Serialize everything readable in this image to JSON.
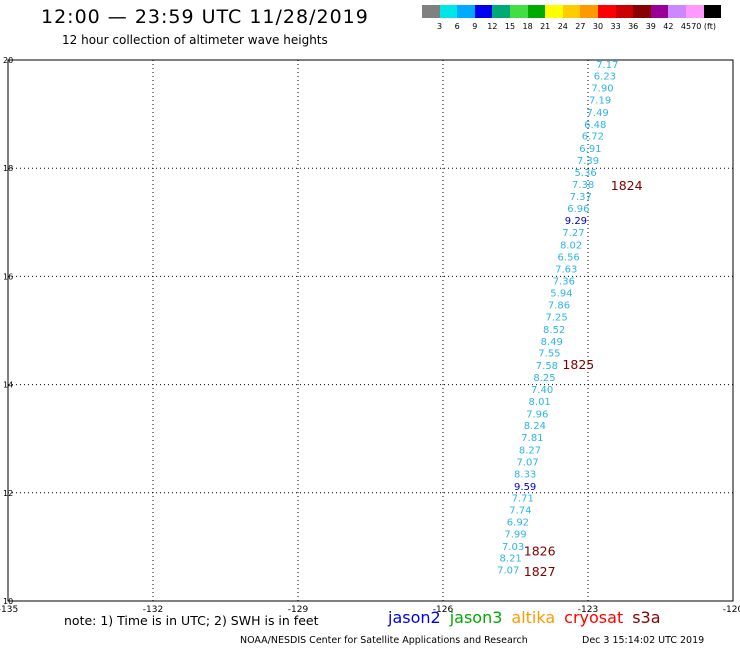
{
  "header": {
    "title": "12:00 — 23:59 UTC 11/28/2019",
    "subtitle": "12 hour collection of altimeter wave heights"
  },
  "color_scale": {
    "colors": [
      "#808080",
      "#00e6e6",
      "#00aaff",
      "#0000ee",
      "#00aa77",
      "#44dd44",
      "#00aa00",
      "#ffff00",
      "#ffcc00",
      "#ff9900",
      "#ff0000",
      "#cc0000",
      "#880000",
      "#990099",
      "#cc88ff",
      "#ff99ff",
      "#000000"
    ],
    "labels": [
      "3",
      "6",
      "9",
      "12",
      "15",
      "18",
      "21",
      "24",
      "27",
      "30",
      "33",
      "36",
      "39",
      "42",
      "45",
      "70 (ft)"
    ]
  },
  "chart_data": {
    "type": "scatter",
    "title": "12:00 — 23:59 UTC 11/28/2019",
    "xlim": [
      -135,
      -120
    ],
    "ylim": [
      10,
      20
    ],
    "x_ticks": [
      "-135",
      "-132",
      "-129",
      "-126",
      "-123",
      "-120"
    ],
    "y_ticks": [
      "10",
      "12",
      "14",
      "16",
      "18",
      "20"
    ],
    "grid": true,
    "series": [
      {
        "name": "jason3",
        "color": "#2db5e8",
        "points": [
          {
            "x": -122.6,
            "y": 19.93,
            "label": "7.17"
          },
          {
            "x": -122.65,
            "y": 19.71,
            "label": "6.23"
          },
          {
            "x": -122.7,
            "y": 19.49,
            "label": "7.90"
          },
          {
            "x": -122.75,
            "y": 19.27,
            "label": "7.19"
          },
          {
            "x": -122.8,
            "y": 19.04,
            "label": "7.49"
          },
          {
            "x": -122.85,
            "y": 18.82,
            "label": "6.48"
          },
          {
            "x": -122.9,
            "y": 18.6,
            "label": "6.72"
          },
          {
            "x": -122.95,
            "y": 18.37,
            "label": "6.91"
          },
          {
            "x": -123.0,
            "y": 18.15,
            "label": "7.39"
          },
          {
            "x": -123.05,
            "y": 17.93,
            "label": "5.36"
          },
          {
            "x": -123.1,
            "y": 17.71,
            "label": "7.38"
          },
          {
            "x": -123.15,
            "y": 17.49,
            "label": "7.37"
          },
          {
            "x": -123.2,
            "y": 17.26,
            "label": "6.96"
          },
          {
            "x": -123.3,
            "y": 16.82,
            "label": "7.27"
          },
          {
            "x": -123.35,
            "y": 16.59,
            "label": "8.02"
          },
          {
            "x": -123.4,
            "y": 16.37,
            "label": "6.56"
          },
          {
            "x": -123.45,
            "y": 16.15,
            "label": "7.63"
          },
          {
            "x": -123.5,
            "y": 15.92,
            "label": "7.36"
          },
          {
            "x": -123.55,
            "y": 15.7,
            "label": "5.94"
          },
          {
            "x": -123.6,
            "y": 15.48,
            "label": "7.86"
          },
          {
            "x": -123.65,
            "y": 15.26,
            "label": "7.25"
          },
          {
            "x": -123.7,
            "y": 15.03,
            "label": "8.52"
          },
          {
            "x": -123.75,
            "y": 14.81,
            "label": "8.49"
          },
          {
            "x": -123.8,
            "y": 14.59,
            "label": "7.55"
          },
          {
            "x": -123.85,
            "y": 14.36,
            "label": "7.58"
          },
          {
            "x": -123.9,
            "y": 14.14,
            "label": "8.25"
          },
          {
            "x": -123.95,
            "y": 13.92,
            "label": "7.40"
          },
          {
            "x": -124.0,
            "y": 13.7,
            "label": "8.01"
          },
          {
            "x": -124.05,
            "y": 13.47,
            "label": "7.96"
          },
          {
            "x": -124.1,
            "y": 13.25,
            "label": "8.24"
          },
          {
            "x": -124.15,
            "y": 13.03,
            "label": "7.81"
          },
          {
            "x": -124.2,
            "y": 12.8,
            "label": "8.27"
          },
          {
            "x": -124.25,
            "y": 12.58,
            "label": "7.07"
          },
          {
            "x": -124.3,
            "y": 12.36,
            "label": "8.33"
          },
          {
            "x": -124.35,
            "y": 11.91,
            "label": "7.71"
          },
          {
            "x": -124.4,
            "y": 11.69,
            "label": "7.74"
          },
          {
            "x": -124.45,
            "y": 11.47,
            "label": "6.92"
          },
          {
            "x": -124.5,
            "y": 11.25,
            "label": "7.99"
          },
          {
            "x": -124.55,
            "y": 11.02,
            "label": "7.03"
          },
          {
            "x": -124.6,
            "y": 10.8,
            "label": "8.21"
          },
          {
            "x": -124.65,
            "y": 10.58,
            "label": "7.07"
          }
        ]
      },
      {
        "name": "jason2",
        "color": "#0000cc",
        "points": [
          {
            "x": -123.25,
            "y": 17.04,
            "label": "9.29"
          },
          {
            "x": -124.3,
            "y": 12.13,
            "label": "9.59"
          }
        ]
      }
    ],
    "annotations": [
      {
        "text": "1824",
        "x": -122.2,
        "y": 17.69,
        "color": "#800000"
      },
      {
        "text": "1825",
        "x": -123.2,
        "y": 14.38,
        "color": "#800000"
      },
      {
        "text": "1826",
        "x": -124.0,
        "y": 10.93,
        "color": "#800000"
      },
      {
        "text": "1827",
        "x": -124.0,
        "y": 10.55,
        "color": "#800000"
      }
    ]
  },
  "footer": {
    "note": "note: 1) Time is in UTC; 2) SWH is in feet",
    "credit": "NOAA/NESDIS Center for Satellite Applications and Research",
    "timestamp": "Dec  3 15:14:02 UTC 2019"
  },
  "satellites": [
    {
      "name": "jason2",
      "color": "#0000ee"
    },
    {
      "name": "jason3",
      "color": "#00aa00"
    },
    {
      "name": "altika",
      "color": "#ff9900"
    },
    {
      "name": "cryosat",
      "color": "#ff0000"
    },
    {
      "name": "s3a",
      "color": "#880000"
    }
  ]
}
